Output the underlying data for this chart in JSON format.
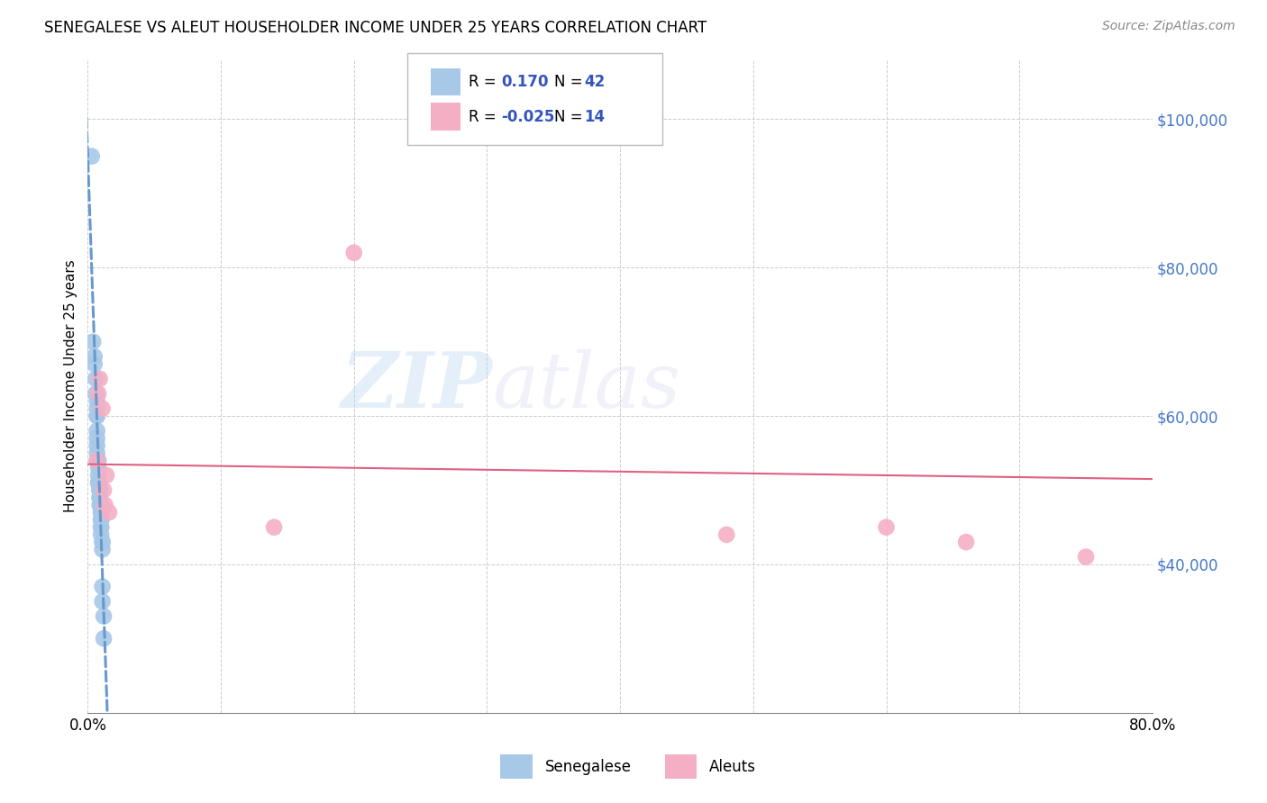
{
  "title": "SENEGALESE VS ALEUT HOUSEHOLDER INCOME UNDER 25 YEARS CORRELATION CHART",
  "source": "Source: ZipAtlas.com",
  "xlabel": "",
  "ylabel": "Householder Income Under 25 years",
  "xlim": [
    0.0,
    0.8
  ],
  "ylim": [
    20000,
    108000
  ],
  "yticks": [
    40000,
    60000,
    80000,
    100000
  ],
  "ytick_labels": [
    "$40,000",
    "$60,000",
    "$80,000",
    "$100,000"
  ],
  "xticks": [
    0.0,
    0.1,
    0.2,
    0.3,
    0.4,
    0.5,
    0.6,
    0.7,
    0.8
  ],
  "xtick_labels": [
    "0.0%",
    "",
    "",
    "",
    "",
    "",
    "",
    "",
    "80.0%"
  ],
  "background_color": "#ffffff",
  "grid_color": "#cccccc",
  "watermark_zip": "ZIP",
  "watermark_atlas": "atlas",
  "r_senegalese": 0.17,
  "n_senegalese": 42,
  "r_aleuts": -0.025,
  "n_aleuts": 14,
  "senegalese_color": "#a8c8e8",
  "aleuts_color": "#f4afc4",
  "trendline_senegalese_color": "#6699cc",
  "trendline_aleuts_color": "#e06080",
  "legend_text_color": "#3355bb",
  "senegalese_x": [
    0.003,
    0.004,
    0.005,
    0.005,
    0.006,
    0.006,
    0.007,
    0.007,
    0.007,
    0.007,
    0.007,
    0.007,
    0.007,
    0.007,
    0.007,
    0.008,
    0.008,
    0.008,
    0.008,
    0.008,
    0.008,
    0.009,
    0.009,
    0.009,
    0.009,
    0.009,
    0.009,
    0.01,
    0.01,
    0.01,
    0.01,
    0.01,
    0.01,
    0.01,
    0.01,
    0.011,
    0.011,
    0.011,
    0.011,
    0.011,
    0.012,
    0.012
  ],
  "senegalese_y": [
    95000,
    70000,
    68000,
    67000,
    65000,
    63000,
    62000,
    61000,
    60000,
    60000,
    58000,
    57000,
    56000,
    55000,
    54000,
    54000,
    53000,
    52000,
    51000,
    51000,
    51000,
    50000,
    50000,
    50000,
    49000,
    49000,
    48000,
    48000,
    47000,
    47000,
    46000,
    46000,
    45000,
    45000,
    44000,
    43000,
    43000,
    42000,
    37000,
    35000,
    33000,
    30000
  ],
  "aleuts_x": [
    0.007,
    0.008,
    0.009,
    0.011,
    0.012,
    0.013,
    0.014,
    0.016,
    0.14,
    0.2,
    0.48,
    0.6,
    0.66,
    0.75
  ],
  "aleuts_y": [
    54000,
    63000,
    65000,
    61000,
    50000,
    48000,
    52000,
    47000,
    45000,
    82000,
    44000,
    45000,
    43000,
    41000
  ],
  "trendline_ale_x0": 0.0,
  "trendline_ale_x1": 0.8,
  "trendline_ale_y0": 53500,
  "trendline_ale_y1": 51500
}
